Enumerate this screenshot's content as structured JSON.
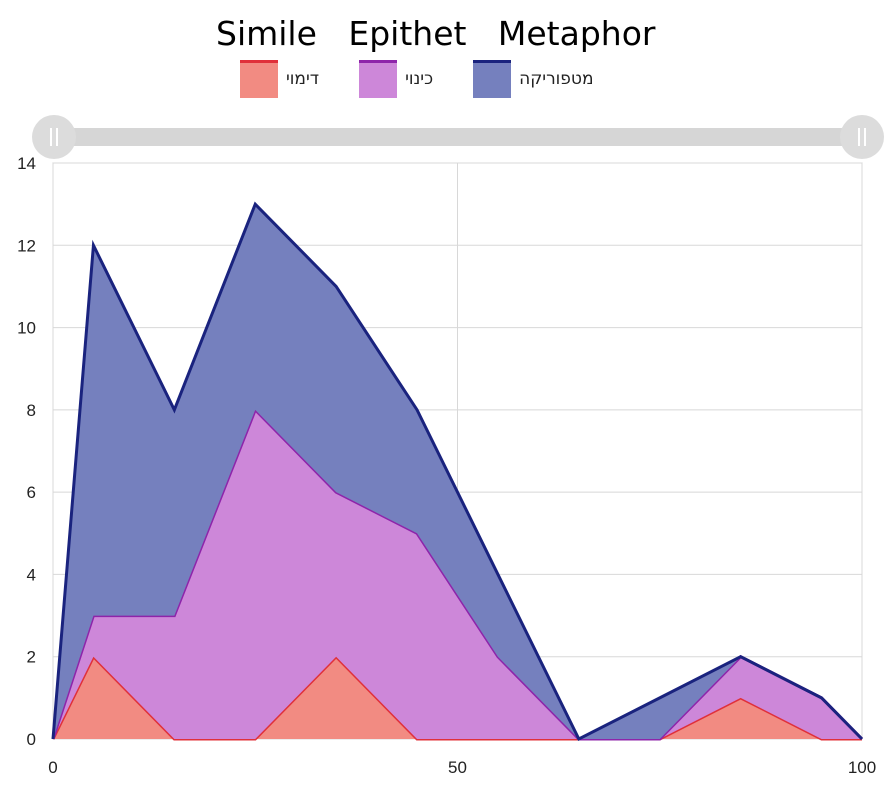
{
  "chart_data": {
    "type": "area",
    "stacked": true,
    "title": "Simile   Epithet   Metaphor",
    "x": [
      0,
      5,
      15,
      25,
      35,
      45,
      55,
      65,
      75,
      85,
      95,
      100
    ],
    "series": [
      {
        "name": "דימוי",
        "color": "#e0303a",
        "fill": "#f28b82",
        "values": [
          0,
          2,
          0,
          0,
          2,
          0,
          0,
          0,
          0,
          1,
          0,
          0
        ]
      },
      {
        "name": "כינוי",
        "color": "#8e24aa",
        "fill": "#cd87d9",
        "values": [
          0,
          1,
          3,
          8,
          4,
          5,
          2,
          0,
          0,
          1,
          1,
          0
        ]
      },
      {
        "name": "מטפוריקה",
        "color": "#1a237e",
        "fill": "#7580be",
        "values": [
          0,
          9,
          5,
          5,
          5,
          3,
          2,
          0,
          1,
          0,
          0,
          0
        ]
      }
    ],
    "xlim": [
      0,
      100
    ],
    "ylim": [
      0,
      14
    ],
    "x_ticks": [
      0,
      50,
      100
    ],
    "y_ticks": [
      0,
      2,
      4,
      6,
      8,
      10,
      12,
      14
    ],
    "grid": true,
    "legend_position": "top"
  }
}
